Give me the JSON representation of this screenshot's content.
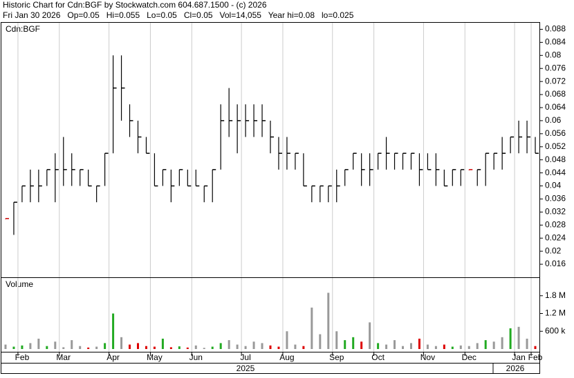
{
  "header": {
    "line1": "Historic Chart for Cdn:BGF by Stockwatch.com 604.687.1500 - (c) 2026",
    "line2": "Fri Jan 30 2026   Op=0.05   Hi=0.055   Lo=0.05   Cl=0.05   Vol=14,055   Year hi=0.08   lo=0.025"
  },
  "chart_data": [
    {
      "type": "ohlc",
      "title": "Cdn:BGF",
      "color": "#000000",
      "flat_color": "#cc0000",
      "categories": [
        null,
        null,
        "Feb",
        null,
        null,
        null,
        null,
        "Mar",
        null,
        null,
        null,
        null,
        null,
        "Apr",
        null,
        null,
        null,
        null,
        "May",
        null,
        null,
        null,
        null,
        "Jun",
        null,
        null,
        null,
        null,
        null,
        "Jul",
        null,
        null,
        null,
        null,
        "Aug",
        null,
        null,
        null,
        null,
        null,
        "Sep",
        null,
        null,
        null,
        null,
        "Oct",
        null,
        null,
        null,
        null,
        null,
        "Nov",
        null,
        null,
        null,
        null,
        "Dec",
        null,
        null,
        null,
        null,
        null,
        "Jan",
        null,
        "Feb"
      ],
      "year_labels": [
        "2025",
        "2026"
      ],
      "series": [
        {
          "name": "High",
          "values": [
            0.03,
            0.035,
            0.04,
            0.045,
            0.045,
            0.045,
            0.05,
            0.055,
            0.05,
            0.045,
            0.045,
            0.04,
            0.05,
            0.08,
            0.08,
            0.065,
            0.06,
            0.055,
            0.05,
            0.045,
            0.045,
            0.045,
            0.045,
            0.045,
            0.04,
            0.045,
            0.065,
            0.07,
            0.065,
            0.065,
            0.065,
            0.065,
            0.06,
            0.055,
            0.055,
            0.05,
            0.05,
            0.04,
            0.04,
            0.04,
            0.045,
            0.045,
            0.05,
            0.05,
            0.05,
            0.05,
            0.055,
            0.05,
            0.05,
            0.05,
            0.05,
            0.05,
            0.05,
            0.045,
            0.045,
            0.045,
            0.045,
            0.045,
            0.05,
            0.05,
            0.055,
            0.055,
            0.06,
            0.06,
            0.055
          ]
        },
        {
          "name": "Low",
          "values": [
            0.03,
            0.025,
            0.035,
            0.035,
            0.035,
            0.04,
            0.035,
            0.04,
            0.04,
            0.04,
            0.04,
            0.035,
            0.04,
            0.05,
            0.06,
            0.055,
            0.05,
            0.05,
            0.04,
            0.04,
            0.035,
            0.04,
            0.04,
            0.04,
            0.035,
            0.035,
            0.045,
            0.055,
            0.05,
            0.055,
            0.055,
            0.055,
            0.05,
            0.045,
            0.045,
            0.045,
            0.04,
            0.035,
            0.035,
            0.035,
            0.035,
            0.04,
            0.045,
            0.04,
            0.04,
            0.045,
            0.045,
            0.045,
            0.045,
            0.045,
            0.04,
            0.045,
            0.04,
            0.04,
            0.04,
            0.04,
            0.045,
            0.04,
            0.04,
            0.045,
            0.045,
            0.05,
            0.05,
            0.05,
            0.05
          ]
        },
        {
          "name": "Close",
          "values": [
            0.03,
            0.035,
            0.04,
            0.04,
            0.04,
            0.045,
            0.045,
            0.045,
            0.045,
            0.045,
            0.04,
            0.04,
            0.05,
            0.07,
            0.07,
            0.06,
            0.055,
            0.05,
            0.04,
            0.045,
            0.04,
            0.045,
            0.04,
            0.04,
            0.04,
            0.045,
            0.06,
            0.06,
            0.06,
            0.06,
            0.06,
            0.06,
            0.055,
            0.05,
            0.05,
            0.05,
            0.04,
            0.04,
            0.04,
            0.04,
            0.04,
            0.045,
            0.05,
            0.045,
            0.045,
            0.05,
            0.05,
            0.05,
            0.05,
            0.05,
            0.045,
            0.045,
            0.045,
            0.04,
            0.045,
            0.045,
            0.045,
            0.045,
            0.05,
            0.05,
            0.05,
            0.055,
            0.055,
            0.055,
            0.05
          ]
        }
      ],
      "ylim": [
        0.012,
        0.09
      ],
      "yticks": [
        0.016,
        0.02,
        0.024,
        0.028,
        0.032,
        0.036,
        0.04,
        0.044,
        0.048,
        0.052,
        0.056,
        0.06,
        0.064,
        0.068,
        0.072,
        0.076,
        0.08,
        0.084,
        0.088
      ],
      "grid": true
    },
    {
      "type": "bar",
      "title": "Volume",
      "up_color": "#22aa22",
      "down_color": "#dd0000",
      "flat_color": "#999999",
      "values": [
        150000,
        80000,
        120000,
        200000,
        350000,
        100000,
        250000,
        60000,
        300000,
        100000,
        50000,
        80000,
        200000,
        1200000,
        400000,
        150000,
        200000,
        100000,
        80000,
        350000,
        60000,
        90000,
        50000,
        120000,
        40000,
        80000,
        200000,
        300000,
        150000,
        100000,
        250000,
        200000,
        120000,
        80000,
        600000,
        150000,
        100000,
        1400000,
        500000,
        1900000,
        600000,
        300000,
        400000,
        250000,
        900000,
        200000,
        150000,
        300000,
        100000,
        200000,
        350000,
        150000,
        100000,
        150000,
        80000,
        120000,
        100000,
        200000,
        300000,
        250000,
        400000,
        700000,
        750000,
        350000,
        100000
      ],
      "ylim": [
        0,
        2400000
      ],
      "yticks": [
        {
          "value": 600000,
          "label": "600 k"
        },
        {
          "value": 1200000,
          "label": "1.2 M"
        },
        {
          "value": 1800000,
          "label": "1.8 M"
        }
      ]
    }
  ]
}
